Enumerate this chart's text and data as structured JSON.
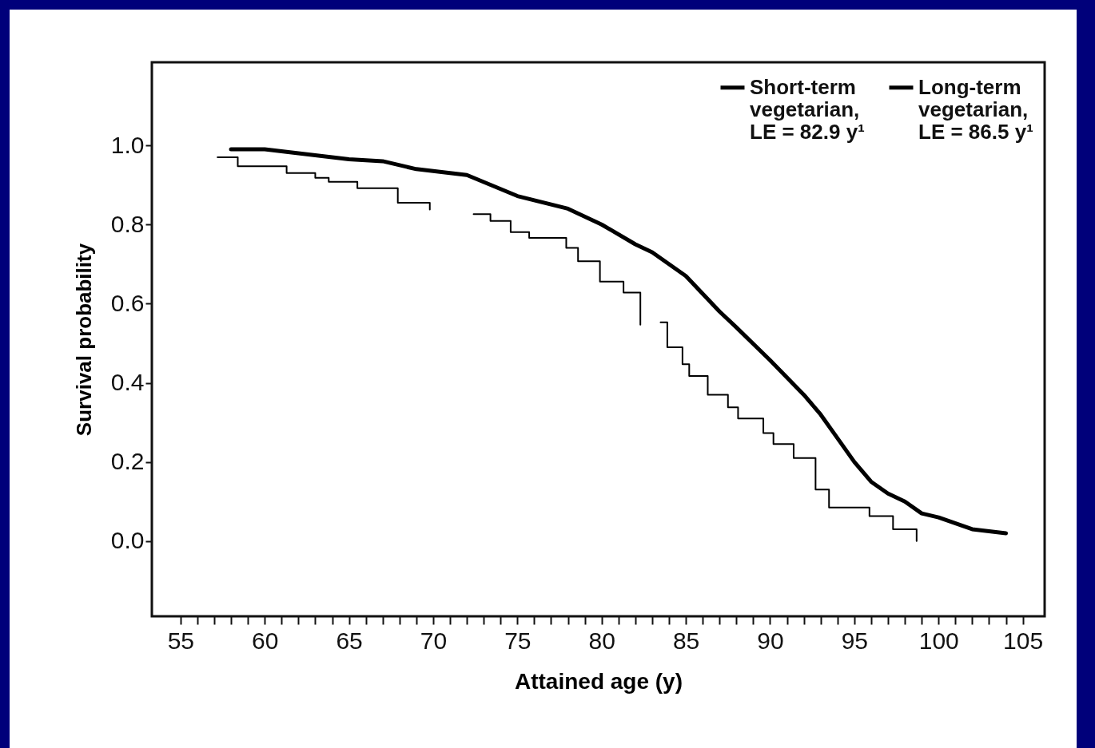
{
  "chart_data": {
    "type": "step",
    "xlabel": "Attained age (y)",
    "ylabel": "Survival probability",
    "xlim": [
      53.3,
      106.3
    ],
    "ylim": [
      -0.19,
      1.21
    ],
    "xticks": [
      55,
      {
        "value": 56,
        "label": null
      },
      {
        "value": 57,
        "label": null
      },
      {
        "value": 58,
        "label": null
      },
      {
        "value": 59,
        "label": null
      },
      60,
      {
        "value": 61,
        "label": null
      },
      {
        "value": 62,
        "label": null
      },
      {
        "value": 63,
        "label": null
      },
      {
        "value": 64,
        "label": null
      },
      65,
      {
        "value": 66,
        "label": null
      },
      {
        "value": 67,
        "label": null
      },
      {
        "value": 68,
        "label": null
      },
      {
        "value": 69,
        "label": null
      },
      70,
      {
        "value": 71,
        "label": null
      },
      {
        "value": 72,
        "label": null
      },
      {
        "value": 73,
        "label": null
      },
      {
        "value": 74,
        "label": null
      },
      75,
      {
        "value": 76,
        "label": null
      },
      {
        "value": 77,
        "label": null
      },
      {
        "value": 78,
        "label": null
      },
      {
        "value": 79,
        "label": null
      },
      80,
      {
        "value": 81,
        "label": null
      },
      {
        "value": 82,
        "label": null
      },
      {
        "value": 83,
        "label": null
      },
      {
        "value": 84,
        "label": null
      },
      85,
      {
        "value": 86,
        "label": null
      },
      {
        "value": 87,
        "label": null
      },
      {
        "value": 88,
        "label": null
      },
      {
        "value": 89,
        "label": null
      },
      90,
      {
        "value": 91,
        "label": null
      },
      {
        "value": 92,
        "label": null
      },
      {
        "value": 93,
        "label": null
      },
      {
        "value": 94,
        "label": null
      },
      95,
      {
        "value": 96,
        "label": null
      },
      {
        "value": 97,
        "label": null
      },
      {
        "value": 98,
        "label": null
      },
      {
        "value": 99,
        "label": null
      },
      100,
      {
        "value": 101,
        "label": null
      },
      {
        "value": 102,
        "label": null
      },
      {
        "value": 103,
        "label": null
      },
      {
        "value": 104,
        "label": null
      },
      105
    ],
    "yticks": [
      {
        "value": 0,
        "label": "0.0"
      },
      0.2,
      0.4,
      0.6,
      0.8,
      {
        "value": 1,
        "label": "1.0"
      }
    ],
    "grid": false,
    "legend": "top right",
    "series": [
      {
        "name": "Short-term\nvegetarian,\nLE = 82.9 y¹",
        "color": "#000000",
        "x": [
          57.2,
          58.4,
          61.3,
          63.0,
          63.8,
          65.5,
          67.9,
          69.8,
          71,
          72.4,
          73.4,
          74.6,
          75.7,
          77.9,
          78.6,
          79.9,
          81.3,
          82.3,
          83,
          83.5,
          83.9,
          84.8,
          85.2,
          86.3,
          87.5,
          88.1,
          89.6,
          90.2,
          91.4,
          92.7,
          93.5,
          95.9,
          97.3,
          98.7
        ],
        "values": [
          0.97,
          0.947,
          0.93,
          0.918,
          0.908,
          0.892,
          0.855,
          0.838,
          null,
          0.826,
          0.809,
          0.781,
          0.766,
          0.741,
          0.707,
          0.656,
          0.628,
          0.547,
          null,
          0.553,
          0.49,
          0.447,
          0.417,
          0.37,
          0.338,
          0.31,
          0.273,
          0.245,
          0.21,
          0.13,
          0.085,
          0.063,
          0.03,
          0.0
        ]
      },
      {
        "name": "Long-term\nvegetarian,\nLE = 86.5 y¹",
        "type": "line",
        "color": "#000000",
        "x": [
          58,
          60,
          62,
          65,
          67,
          69,
          72,
          75,
          78,
          80,
          82,
          83,
          85,
          87,
          88,
          90,
          92,
          93,
          94,
          95,
          96,
          97,
          98,
          99,
          100,
          102,
          104
        ],
        "values": [
          0.99,
          0.99,
          0.98,
          0.965,
          0.96,
          0.94,
          0.925,
          0.872,
          0.84,
          0.8,
          0.75,
          0.73,
          0.67,
          0.58,
          0.54,
          0.457,
          0.37,
          0.32,
          0.26,
          0.2,
          0.15,
          0.12,
          0.1,
          0.07,
          0.06,
          0.03,
          0.02
        ]
      }
    ]
  }
}
